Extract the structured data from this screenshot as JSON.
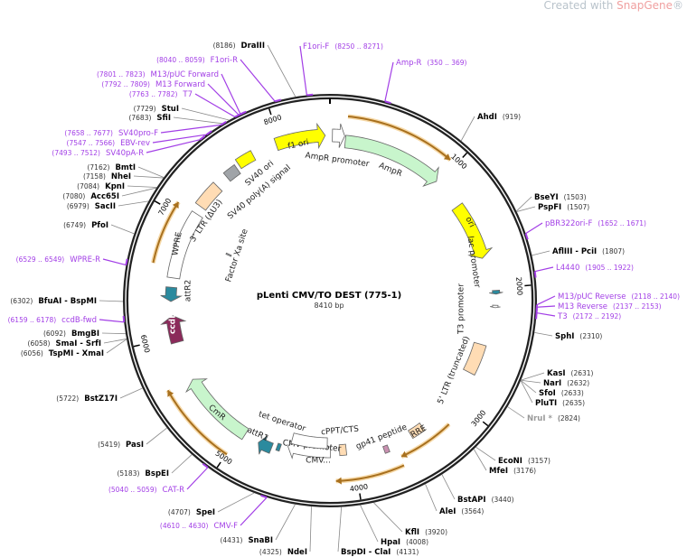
{
  "watermark": {
    "prefix": "Created with ",
    "brand": "SnapGene",
    "suffix": "®"
  },
  "plasmid": {
    "name": "pLenti CMV/TO DEST (775-1)",
    "length_label": "8410 bp",
    "length_bp": 8410
  },
  "ticks": [
    "1000",
    "2000",
    "3000",
    "4000",
    "5000",
    "6000",
    "7000",
    "8000"
  ],
  "colors": {
    "primer": "#a23ee6",
    "ring": "#222222",
    "orf": "#d9902a",
    "yellow": "#ffff00",
    "green": "#c8f5cc",
    "peach": "#ffdcb4",
    "teal": "#2b8a9e",
    "ccdB": "#8b2a5a",
    "gray": "#a0a4a8"
  },
  "sites": [
    {
      "name": "AhdI",
      "pos": 919
    },
    {
      "name": "BseYI",
      "pos": 1503
    },
    {
      "name": "PspFI",
      "pos": 1507
    },
    {
      "name": "AflIII - PciI",
      "pos": 1807
    },
    {
      "name": "SphI",
      "pos": 2310
    },
    {
      "name": "KasI",
      "pos": 2631
    },
    {
      "name": "NarI",
      "pos": 2632
    },
    {
      "name": "SfoI",
      "pos": 2633
    },
    {
      "name": "PluTI",
      "pos": 2635
    },
    {
      "name": "NruI *",
      "pos": 2824,
      "dimmed": true
    },
    {
      "name": "EcoNI",
      "pos": 3157
    },
    {
      "name": "MfeI",
      "pos": 3176
    },
    {
      "name": "BstAPI",
      "pos": 3440
    },
    {
      "name": "AleI",
      "pos": 3564
    },
    {
      "name": "KflI",
      "pos": 3920
    },
    {
      "name": "HpaI",
      "pos": 4008
    },
    {
      "name": "BspDI - ClaI",
      "pos": 4131
    },
    {
      "name": "NdeI",
      "pos": 4325
    },
    {
      "name": "SnaBI",
      "pos": 4431
    },
    {
      "name": "SpeI",
      "pos": 4707
    },
    {
      "name": "BspEI",
      "pos": 5183
    },
    {
      "name": "PasI",
      "pos": 5419
    },
    {
      "name": "BstZ17I",
      "pos": 5722
    },
    {
      "name": "TspMI - XmaI",
      "pos": 6056
    },
    {
      "name": "SmaI - SrfI",
      "pos": 6058
    },
    {
      "name": "BmgBI",
      "pos": 6092
    },
    {
      "name": "BfuAI - BspMI",
      "pos": 6302
    },
    {
      "name": "PfoI",
      "pos": 6749
    },
    {
      "name": "SacII",
      "pos": 6979
    },
    {
      "name": "Acc65I",
      "pos": 7080
    },
    {
      "name": "KpnI",
      "pos": 7084
    },
    {
      "name": "NheI",
      "pos": 7158
    },
    {
      "name": "BmtI",
      "pos": 7162
    },
    {
      "name": "SfiI",
      "pos": 7683
    },
    {
      "name": "StuI",
      "pos": 7729
    },
    {
      "name": "DraIII",
      "pos": 8186
    }
  ],
  "primers": [
    {
      "name": "F1ori-F",
      "range": "8250 .. 8271",
      "pos": 8260
    },
    {
      "name": "Amp-R",
      "range": "350 .. 369",
      "pos": 360
    },
    {
      "name": "pBR322ori-F",
      "range": "1652 .. 1671",
      "pos": 1660
    },
    {
      "name": "L4440",
      "range": "1905 .. 1922",
      "pos": 1913
    },
    {
      "name": "M13/pUC Reverse",
      "range": "2118 .. 2140",
      "pos": 2130
    },
    {
      "name": "M13 Reverse",
      "range": "2137 .. 2153",
      "pos": 2145
    },
    {
      "name": "T3",
      "range": "2172 .. 2192",
      "pos": 2182
    },
    {
      "name": "CMV-F",
      "range": "4610 .. 4630",
      "pos": 4620
    },
    {
      "name": "CAT-R",
      "range": "5040 .. 5059",
      "pos": 5050
    },
    {
      "name": "ccdB-fwd",
      "range": "6159 .. 6178",
      "pos": 6168
    },
    {
      "name": "WPRE-R",
      "range": "6529 .. 6549",
      "pos": 6539
    },
    {
      "name": "SV40pA-R",
      "range": "7493 .. 7512",
      "pos": 7502
    },
    {
      "name": "EBV-rev",
      "range": "7547 .. 7566",
      "pos": 7556
    },
    {
      "name": "SV40pro-F",
      "range": "7658 .. 7677",
      "pos": 7667
    },
    {
      "name": "T7",
      "range": "7763 .. 7782",
      "pos": 7772
    },
    {
      "name": "M13 Forward",
      "range": "7792 .. 7809",
      "pos": 7800
    },
    {
      "name": "M13/pUC Forward",
      "range": "7801 .. 7823",
      "pos": 7812
    },
    {
      "name": "F1ori-R",
      "range": "8040 .. 8059",
      "pos": 8050
    }
  ],
  "features": [
    {
      "name": "f1 ori",
      "start": 7966,
      "end": 8372,
      "dir": 1,
      "color": "#ffff00"
    },
    {
      "name": "AmpR promoter",
      "start": 20,
      "end": 120,
      "dir": 1,
      "color": "#ffffff"
    },
    {
      "name": "AmpR",
      "start": 128,
      "end": 975,
      "dir": 1,
      "color": "#c8f5cc"
    },
    {
      "name": "ori",
      "start": 1250,
      "end": 1740,
      "dir": 1,
      "color": "#ffff00"
    },
    {
      "name": "lac promoter",
      "start": 2020,
      "end": 2050,
      "dir": 1,
      "color": "#2b8a9e"
    },
    {
      "name": "T3 promoter",
      "start": 2140,
      "end": 2160,
      "dir": 1,
      "color": "#ffffff"
    },
    {
      "name": "5' LTR (truncated)",
      "start": 2480,
      "end": 2740,
      "dir": 0,
      "color": "#ffdcb4"
    },
    {
      "name": "RRE",
      "start": 3360,
      "end": 3480,
      "dir": 0,
      "color": "#ffdcb4"
    },
    {
      "name": "gp41 peptide",
      "start": 3700,
      "end": 3740,
      "dir": 0,
      "color": "#c890b0"
    },
    {
      "name": "cPPT/CTS",
      "start": 4060,
      "end": 4120,
      "dir": 0,
      "color": "#ffdcb4"
    },
    {
      "name": "CMV promoter",
      "start": 4200,
      "end": 4580,
      "dir": 1,
      "color": "#ffffff"
    },
    {
      "name": "CMV...",
      "start": 4230,
      "end": 4560,
      "dir": 0,
      "color": "#ffffff"
    },
    {
      "name": "tet operator",
      "start": 4640,
      "end": 4670,
      "dir": 0,
      "color": "#2b8a9e"
    },
    {
      "name": "attR1",
      "start": 4710,
      "end": 4830,
      "dir": 1,
      "color": "#2b8a9e"
    },
    {
      "name": "CmR",
      "start": 4960,
      "end": 5610,
      "dir": 1,
      "color": "#c8f5cc"
    },
    {
      "name": "ccdB",
      "start": 5950,
      "end": 6180,
      "dir": 1,
      "color": "#8b2a5a"
    },
    {
      "name": "attR2",
      "start": 6300,
      "end": 6420,
      "dir": -1,
      "color": "#2b8a9e"
    },
    {
      "name": "WPRE",
      "start": 6500,
      "end": 7080,
      "dir": 0,
      "color": "#ffffff"
    },
    {
      "name": "3' LTR (ΔU3)",
      "start": 7150,
      "end": 7370,
      "dir": 0,
      "color": "#ffdcb4"
    },
    {
      "name": "SV40 poly(A) signal",
      "start": 7480,
      "end": 7590,
      "dir": 0,
      "color": "#a0a4a8"
    },
    {
      "name": "SV40 ori",
      "start": 7620,
      "end": 7760,
      "dir": 0,
      "color": "#ffff00"
    },
    {
      "name": "Factor Xa site",
      "start": 6870,
      "end": 6885,
      "dir": 0,
      "color": "#a0a4a8"
    }
  ],
  "orfs": [
    {
      "start": 131,
      "end": 946,
      "dir": 1
    },
    {
      "start": 3180,
      "end": 3630,
      "dir": 1
    },
    {
      "start": 3640,
      "end": 4160,
      "dir": 1
    },
    {
      "start": 4995,
      "end": 5630,
      "dir": 1
    },
    {
      "start": 6590,
      "end": 7080,
      "dir": 1
    }
  ]
}
